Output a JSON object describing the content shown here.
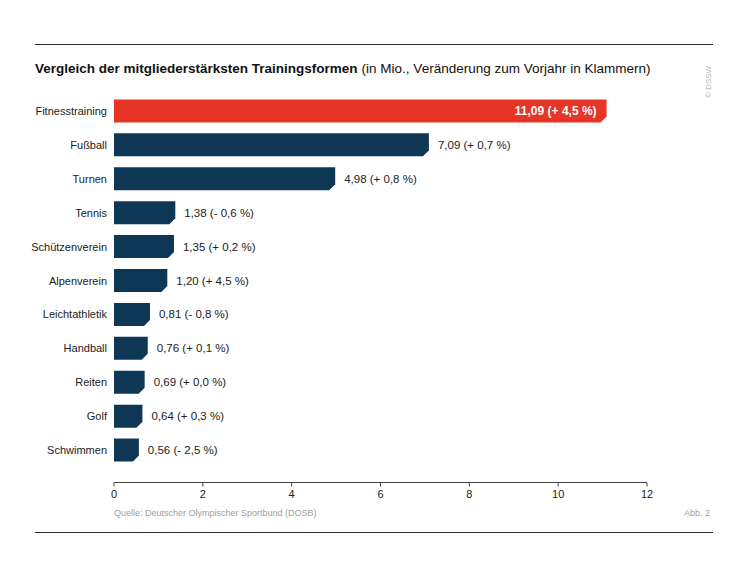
{
  "chart_data": {
    "type": "bar",
    "orientation": "horizontal",
    "title": "Vergleich der mitgliederstärksten Trainingsformen",
    "subtitle": "(in Mio., Veränderung zum Vorjahr in Klammern)",
    "categories": [
      "Fitnesstraining",
      "Fußball",
      "Turnen",
      "Tennis",
      "Schützenverein",
      "Alpenverein",
      "Leichtathletik",
      "Handball",
      "Reiten",
      "Golf",
      "Schwimmen"
    ],
    "values": [
      11.09,
      7.09,
      4.98,
      1.38,
      1.35,
      1.2,
      0.81,
      0.76,
      0.69,
      0.64,
      0.56
    ],
    "value_labels": [
      "11,09 (+ 4,5 %)",
      "7,09 (+ 0,7 %)",
      "4,98 (+ 0,8 %)",
      "1,38 (- 0,6 %)",
      "1,35 (+ 0,2 %)",
      "1,20 (+ 4,5 %)",
      "0,81 (- 0,8 %)",
      "0,76 (+ 0,1 %)",
      "0,69 (+ 0,0 %)",
      "0,64 (+ 0,3 %)",
      "0,56 (- 2,5 %)"
    ],
    "colors": [
      "#e63427",
      "#0e3655",
      "#0e3655",
      "#0e3655",
      "#0e3655",
      "#0e3655",
      "#0e3655",
      "#0e3655",
      "#0e3655",
      "#0e3655",
      "#0e3655"
    ],
    "data_labels": true,
    "grid": false,
    "xlim": [
      0,
      12
    ],
    "xticks": [
      0,
      2,
      4,
      6,
      8,
      10,
      12
    ],
    "source": "Quelle: Deutscher Olympischer Sportbund (DOSB)",
    "figure_label": "Abb. 2",
    "watermark": "© DSSW"
  }
}
